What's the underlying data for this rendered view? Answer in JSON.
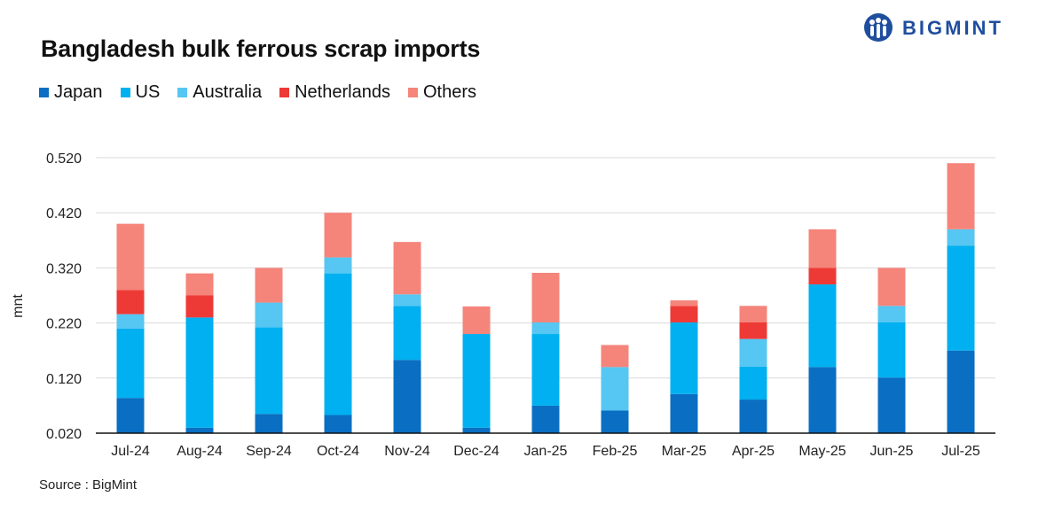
{
  "title": "Bangladesh bulk ferrous scrap imports",
  "source": "Source : BigMint",
  "logo": {
    "text": "BIGMINT",
    "icon": "bigmint-logo-icon",
    "color": "#1f4e9e"
  },
  "chart_data": {
    "type": "bar",
    "stacked": true,
    "title": "Bangladesh bulk ferrous scrap imports",
    "xlabel": "",
    "ylabel": "mnt",
    "ylim": [
      0.02,
      0.52
    ],
    "yticks": [
      "0.020",
      "0.120",
      "0.220",
      "0.320",
      "0.420",
      "0.520"
    ],
    "grid": true,
    "legend_position": "top-left",
    "categories": [
      "Jul-24",
      "Aug-24",
      "Sep-24",
      "Oct-24",
      "Nov-24",
      "Dec-24",
      "Jan-25",
      "Feb-25",
      "Mar-25",
      "Apr-25",
      "May-25",
      "Jun-25",
      "Jul-25"
    ],
    "series": [
      {
        "name": "Japan",
        "color": "#0a6fc2",
        "values": [
          0.064,
          0.01,
          0.035,
          0.033,
          0.133,
          0.01,
          0.05,
          0.041,
          0.071,
          0.061,
          0.12,
          0.101,
          0.15
        ]
      },
      {
        "name": "US",
        "color": "#00b0f0",
        "values": [
          0.126,
          0.2,
          0.157,
          0.257,
          0.098,
          0.17,
          0.13,
          0.0,
          0.13,
          0.06,
          0.15,
          0.1,
          0.19
        ]
      },
      {
        "name": "Australia",
        "color": "#56c6f2",
        "values": [
          0.026,
          0.0,
          0.045,
          0.029,
          0.021,
          0.0,
          0.021,
          0.079,
          0.0,
          0.05,
          0.0,
          0.03,
          0.03
        ]
      },
      {
        "name": "Netherlands",
        "color": "#ee3a36",
        "values": [
          0.044,
          0.04,
          0.0,
          0.0,
          0.0,
          0.0,
          0.0,
          0.0,
          0.03,
          0.03,
          0.03,
          0.0,
          0.0
        ]
      },
      {
        "name": "Others",
        "color": "#f5847a",
        "values": [
          0.12,
          0.04,
          0.063,
          0.081,
          0.095,
          0.05,
          0.09,
          0.04,
          0.01,
          0.03,
          0.07,
          0.069,
          0.12
        ]
      }
    ]
  }
}
